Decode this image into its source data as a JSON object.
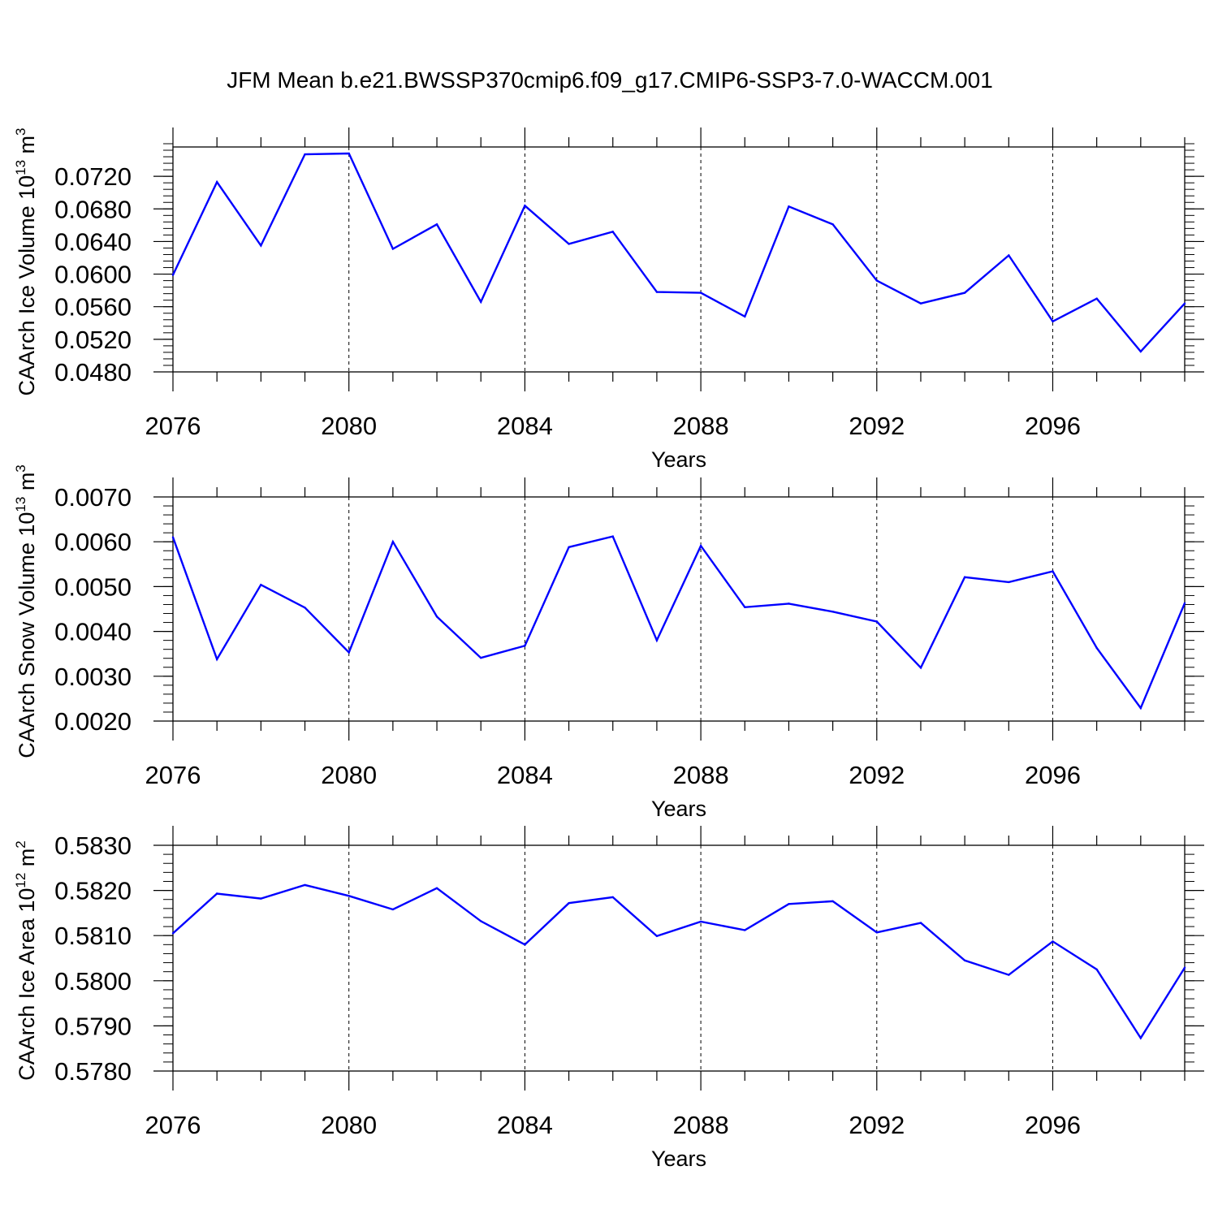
{
  "title": "JFM Mean b.e21.BWSSP370cmip6.f09_g17.CMIP6-SSP3-7.0-WACCM.001",
  "line_color": "#0000ff",
  "chart_data": [
    {
      "type": "line",
      "title": "",
      "xlabel": "Years",
      "ylabel_main": "CAArch Ice Volume 10",
      "ylabel_exp": "13",
      "ylabel_unit": " m",
      "ylabel_unit_exp": "3",
      "xlim": [
        2076,
        2099
      ],
      "ylim": [
        0.048,
        0.0756
      ],
      "xticks": [
        2076,
        2080,
        2084,
        2088,
        2092,
        2096
      ],
      "xtick_labels": [
        "2076",
        "2080",
        "2084",
        "2088",
        "2092",
        "2096"
      ],
      "yticks": [
        0.048,
        0.052,
        0.056,
        0.06,
        0.064,
        0.068,
        0.072
      ],
      "ytick_labels": [
        "0.0480",
        "0.0520",
        "0.0560",
        "0.0600",
        "0.0640",
        "0.0680",
        "0.0720"
      ],
      "grid": "vertical dashed at major x ticks",
      "x": [
        2076,
        2077,
        2078,
        2079,
        2080,
        2081,
        2082,
        2083,
        2084,
        2085,
        2086,
        2087,
        2088,
        2089,
        2090,
        2091,
        2092,
        2093,
        2094,
        2095,
        2096,
        2097,
        2098,
        2099
      ],
      "values": [
        0.0599,
        0.0713,
        0.0635,
        0.0747,
        0.0748,
        0.0631,
        0.0661,
        0.0566,
        0.0684,
        0.0637,
        0.0652,
        0.0578,
        0.0577,
        0.0548,
        0.0683,
        0.0661,
        0.0592,
        0.0564,
        0.0577,
        0.0623,
        0.0542,
        0.057,
        0.0505,
        0.0564
      ]
    },
    {
      "type": "line",
      "title": "",
      "xlabel": "Years",
      "ylabel_main": "CAArch Snow Volume 10",
      "ylabel_exp": "13",
      "ylabel_unit": " m",
      "ylabel_unit_exp": "3",
      "xlim": [
        2076,
        2099
      ],
      "ylim": [
        0.002,
        0.007
      ],
      "xticks": [
        2076,
        2080,
        2084,
        2088,
        2092,
        2096
      ],
      "xtick_labels": [
        "2076",
        "2080",
        "2084",
        "2088",
        "2092",
        "2096"
      ],
      "yticks": [
        0.002,
        0.003,
        0.004,
        0.005,
        0.006,
        0.007
      ],
      "ytick_labels": [
        "0.0020",
        "0.0030",
        "0.0040",
        "0.0050",
        "0.0060",
        "0.0070"
      ],
      "grid": "vertical dashed at major x ticks",
      "x": [
        2076,
        2077,
        2078,
        2079,
        2080,
        2081,
        2082,
        2083,
        2084,
        2085,
        2086,
        2087,
        2088,
        2089,
        2090,
        2091,
        2092,
        2093,
        2094,
        2095,
        2096,
        2097,
        2098,
        2099
      ],
      "values": [
        0.0061,
        0.00338,
        0.00504,
        0.00453,
        0.00353,
        0.006,
        0.00433,
        0.00341,
        0.00368,
        0.00588,
        0.00612,
        0.0038,
        0.00591,
        0.00454,
        0.00462,
        0.00444,
        0.00422,
        0.00319,
        0.00521,
        0.0051,
        0.00534,
        0.00363,
        0.00229,
        0.00463
      ]
    },
    {
      "type": "line",
      "title": "",
      "xlabel": "Years",
      "ylabel_main": "CAArch Ice Area 10",
      "ylabel_exp": "12",
      "ylabel_unit": " m",
      "ylabel_unit_exp": "2",
      "xlim": [
        2076,
        2099
      ],
      "ylim": [
        0.578,
        0.583
      ],
      "xticks": [
        2076,
        2080,
        2084,
        2088,
        2092,
        2096
      ],
      "xtick_labels": [
        "2076",
        "2080",
        "2084",
        "2088",
        "2092",
        "2096"
      ],
      "yticks": [
        0.578,
        0.579,
        0.58,
        0.581,
        0.582,
        0.583
      ],
      "ytick_labels": [
        "0.5780",
        "0.5790",
        "0.5800",
        "0.5810",
        "0.5820",
        "0.5830"
      ],
      "grid": "vertical dashed at major x ticks",
      "x": [
        2076,
        2077,
        2078,
        2079,
        2080,
        2081,
        2082,
        2083,
        2084,
        2085,
        2086,
        2087,
        2088,
        2089,
        2090,
        2091,
        2092,
        2093,
        2094,
        2095,
        2096,
        2097,
        2098,
        2099
      ],
      "values": [
        0.58105,
        0.58193,
        0.58182,
        0.58212,
        0.58188,
        0.58158,
        0.58205,
        0.58132,
        0.5808,
        0.58172,
        0.58185,
        0.58099,
        0.58131,
        0.58112,
        0.5817,
        0.58176,
        0.58107,
        0.58128,
        0.58045,
        0.58013,
        0.58087,
        0.58025,
        0.57873,
        0.58029
      ]
    }
  ]
}
